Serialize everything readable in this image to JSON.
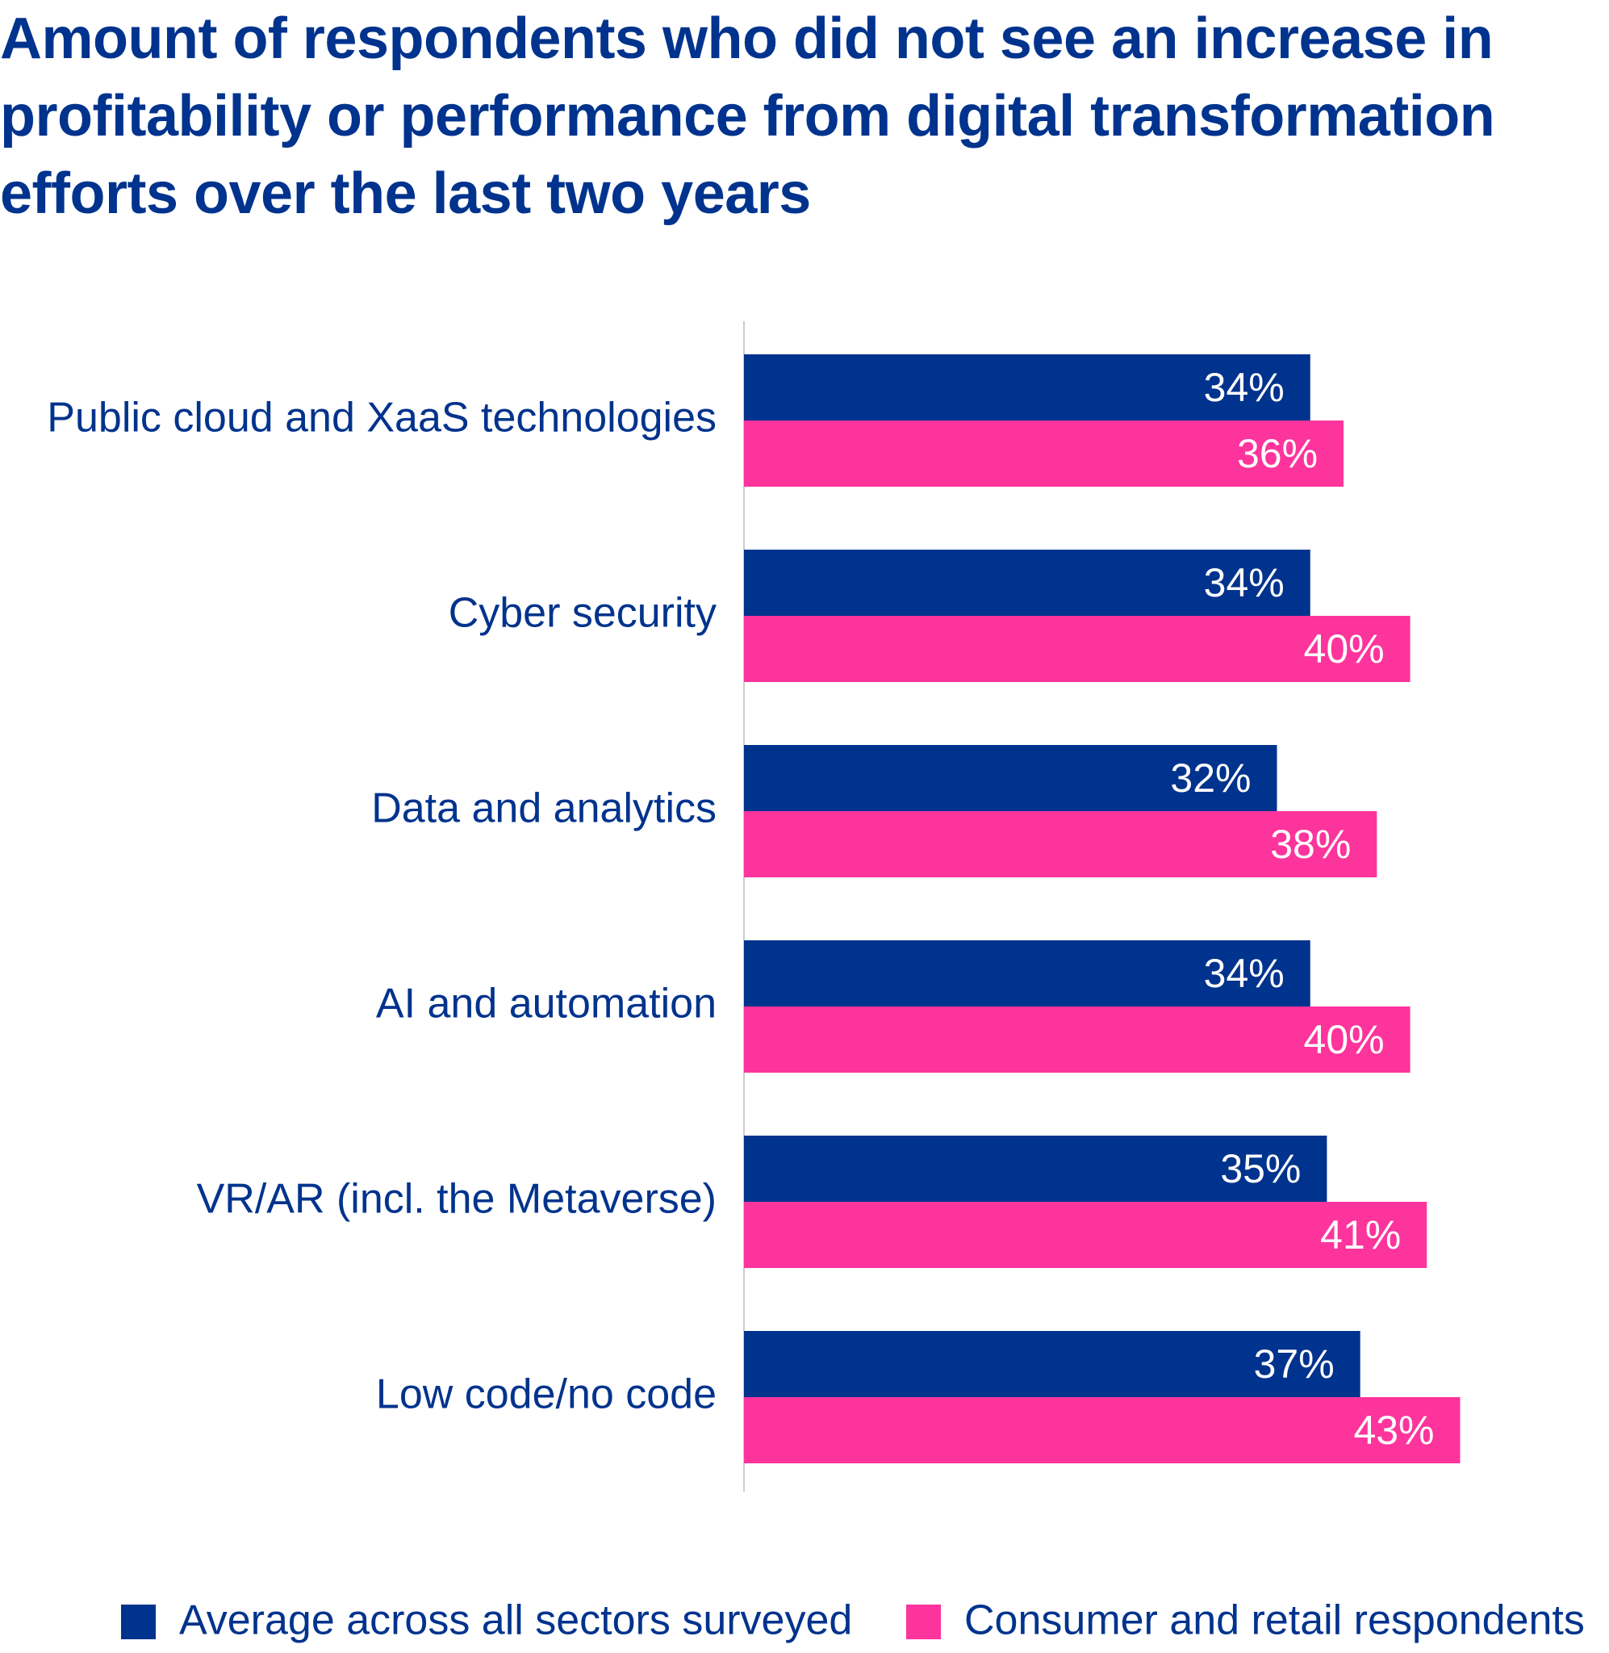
{
  "chart_data": {
    "type": "bar",
    "orientation": "horizontal",
    "title": "Amount of respondents who did not see an increase in profitability or performance from digital transformation efforts over the last two years",
    "categories": [
      "Public cloud and XaaS technologies",
      "Cyber security",
      "Data and analytics",
      "AI and automation",
      "VR/AR (incl. the Metaverse)",
      "Low code/no code"
    ],
    "series": [
      {
        "name": "Average across all sectors surveyed",
        "color": "#00338d",
        "values": [
          34,
          34,
          32,
          34,
          35,
          37
        ],
        "value_labels": [
          "34%",
          "34%",
          "32%",
          "34%",
          "35%",
          "37%"
        ]
      },
      {
        "name": "Consumer and retail respondents",
        "color": "#fd349c",
        "values": [
          36,
          40,
          38,
          40,
          41,
          43
        ],
        "value_labels": [
          "36%",
          "40%",
          "38%",
          "40%",
          "41%",
          "43%"
        ]
      }
    ],
    "xlim": [
      0,
      50
    ]
  }
}
